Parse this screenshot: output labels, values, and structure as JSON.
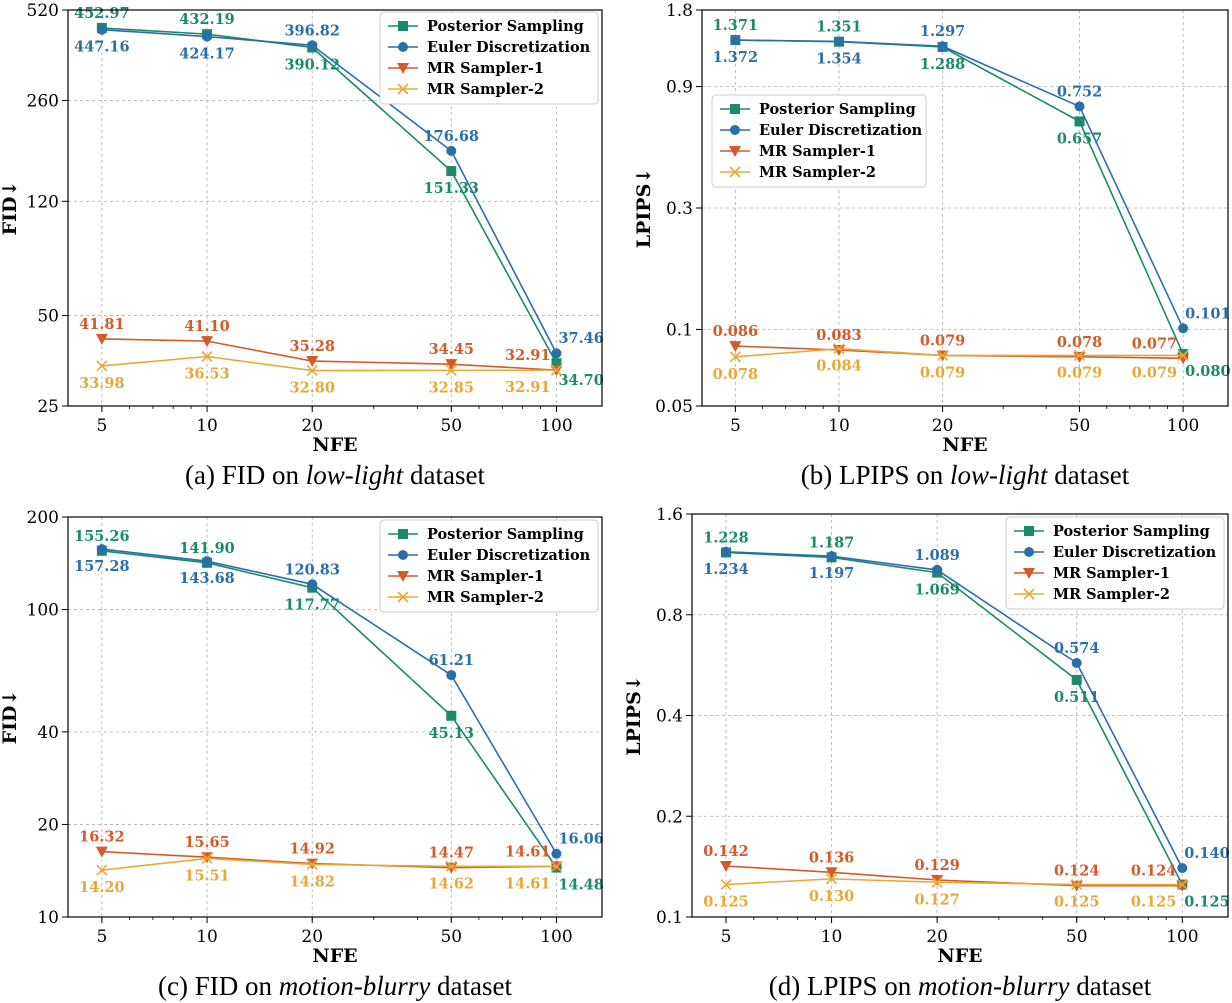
{
  "chart_data": [
    {
      "id": "a",
      "type": "line",
      "caption": {
        "prefix": "(a) FID on ",
        "italic": "low-light",
        "suffix": " dataset"
      },
      "xlabel": "NFE",
      "ylabel": "FID↓",
      "x": [
        5,
        10,
        20,
        50,
        100
      ],
      "x_ticks": [
        "5",
        "10",
        "20",
        "50",
        "100"
      ],
      "xscale": "log",
      "xlim": [
        4,
        135
      ],
      "yscale": "log",
      "ylim": [
        25,
        520
      ],
      "y_ticks": [
        "25",
        "50",
        "120",
        "260",
        "520"
      ],
      "legend": "top-right",
      "series": [
        {
          "name": "Posterior Sampling",
          "color": "#1a8a6a",
          "marker": "square",
          "values": [
            452.97,
            432.19,
            390.12,
            151.33,
            34.7
          ],
          "labels": [
            "452.97",
            "432.19",
            "390.12",
            "151.33",
            "34.70"
          ],
          "label_pos": [
            "above",
            "above",
            "below",
            "below",
            "below-right"
          ]
        },
        {
          "name": "Euler Discretization",
          "color": "#2a6fa8",
          "marker": "circle",
          "values": [
            447.16,
            424.17,
            396.82,
            176.68,
            37.46
          ],
          "labels": [
            "447.16",
            "424.17",
            "396.82",
            "176.68",
            "37.46"
          ],
          "label_pos": [
            "below",
            "below",
            "above",
            "above",
            "above-right"
          ]
        },
        {
          "name": "MR Sampler-1",
          "color": "#d45a2a",
          "marker": "tri_down",
          "values": [
            41.81,
            41.1,
            35.28,
            34.45,
            32.91
          ],
          "labels": [
            "41.81",
            "41.10",
            "35.28",
            "34.45",
            "32.91"
          ],
          "label_pos": [
            "above",
            "above",
            "above",
            "above",
            "above-left"
          ]
        },
        {
          "name": "MR Sampler-2",
          "color": "#e8a838",
          "marker": "x",
          "values": [
            33.98,
            36.53,
            32.8,
            32.85,
            32.91
          ],
          "labels": [
            "33.98",
            "36.53",
            "32.80",
            "32.85",
            "32.91"
          ],
          "label_pos": [
            "below",
            "below",
            "below",
            "below",
            "below-left"
          ]
        }
      ]
    },
    {
      "id": "b",
      "type": "line",
      "caption": {
        "prefix": "(b) LPIPS on ",
        "italic": "low-light",
        "suffix": " dataset"
      },
      "xlabel": "NFE",
      "ylabel": "LPIPS↓",
      "x": [
        5,
        10,
        20,
        50,
        100
      ],
      "x_ticks": [
        "5",
        "10",
        "20",
        "50",
        "100"
      ],
      "xscale": "log",
      "xlim": [
        4,
        135
      ],
      "yscale": "log",
      "ylim": [
        0.05,
        1.8
      ],
      "y_ticks": [
        "0.05",
        "0.1",
        "0.3",
        "0.9",
        "1.8"
      ],
      "legend": "upper-left",
      "series": [
        {
          "name": "Posterior Sampling",
          "color": "#1a8a6a",
          "marker": "square",
          "values": [
            1.371,
            1.351,
            1.288,
            0.657,
            0.08
          ],
          "labels": [
            "1.371",
            "1.351",
            "1.288",
            "0.657",
            "0.080"
          ],
          "label_pos": [
            "above",
            "above",
            "below",
            "below",
            "below-right"
          ]
        },
        {
          "name": "Euler Discretization",
          "color": "#2a6fa8",
          "marker": "circle",
          "values": [
            1.372,
            1.354,
            1.297,
            0.752,
            0.101
          ],
          "labels": [
            "1.372",
            "1.354",
            "1.297",
            "0.752",
            "0.101"
          ],
          "label_pos": [
            "below",
            "below",
            "above",
            "above",
            "above-right"
          ]
        },
        {
          "name": "MR Sampler-1",
          "color": "#d45a2a",
          "marker": "tri_down",
          "values": [
            0.086,
            0.083,
            0.079,
            0.078,
            0.077
          ],
          "labels": [
            "0.086",
            "0.083",
            "0.079",
            "0.078",
            "0.077"
          ],
          "label_pos": [
            "above",
            "above",
            "above",
            "above",
            "above-left"
          ]
        },
        {
          "name": "MR Sampler-2",
          "color": "#e8a838",
          "marker": "x",
          "values": [
            0.078,
            0.084,
            0.079,
            0.079,
            0.079
          ],
          "labels": [
            "0.078",
            "0.084",
            "0.079",
            "0.079",
            "0.079"
          ],
          "label_pos": [
            "below",
            "below",
            "below",
            "below",
            "below-left"
          ]
        }
      ]
    },
    {
      "id": "c",
      "type": "line",
      "caption": {
        "prefix": "(c) FID on ",
        "italic": "motion-blurry",
        "suffix": " dataset"
      },
      "xlabel": "NFE",
      "ylabel": "FID↓",
      "x": [
        5,
        10,
        20,
        50,
        100
      ],
      "x_ticks": [
        "5",
        "10",
        "20",
        "50",
        "100"
      ],
      "xscale": "log",
      "xlim": [
        4,
        135
      ],
      "yscale": "log",
      "ylim": [
        10,
        200
      ],
      "y_ticks": [
        "10",
        "20",
        "40",
        "100",
        "200"
      ],
      "legend": "top-right",
      "series": [
        {
          "name": "Posterior Sampling",
          "color": "#1a8a6a",
          "marker": "square",
          "values": [
            155.26,
            141.9,
            117.77,
            45.13,
            14.48
          ],
          "labels": [
            "155.26",
            "141.90",
            "117.77",
            "45.13",
            "14.48"
          ],
          "label_pos": [
            "above",
            "above",
            "below",
            "below",
            "below-right"
          ]
        },
        {
          "name": "Euler Discretization",
          "color": "#2a6fa8",
          "marker": "circle",
          "values": [
            157.28,
            143.68,
            120.83,
            61.21,
            16.06
          ],
          "labels": [
            "157.28",
            "143.68",
            "120.83",
            "61.21",
            "16.06"
          ],
          "label_pos": [
            "below",
            "below",
            "above",
            "above",
            "above-right"
          ]
        },
        {
          "name": "MR Sampler-1",
          "color": "#d45a2a",
          "marker": "tri_down",
          "values": [
            16.32,
            15.65,
            14.92,
            14.47,
            14.61
          ],
          "labels": [
            "16.32",
            "15.65",
            "14.92",
            "14.47",
            "14.61"
          ],
          "label_pos": [
            "above",
            "above",
            "above",
            "above",
            "above-left"
          ]
        },
        {
          "name": "MR Sampler-2",
          "color": "#e8a838",
          "marker": "x",
          "values": [
            14.2,
            15.51,
            14.82,
            14.62,
            14.61
          ],
          "labels": [
            "14.20",
            "15.51",
            "14.82",
            "14.62",
            "14.61"
          ],
          "label_pos": [
            "below",
            "below",
            "below",
            "below",
            "below-left"
          ]
        }
      ]
    },
    {
      "id": "d",
      "type": "line",
      "caption": {
        "prefix": "(d) LPIPS on ",
        "italic": "motion-blurry",
        "suffix": " dataset"
      },
      "xlabel": "NFE",
      "ylabel": "LPIPS↓",
      "x": [
        5,
        10,
        20,
        50,
        100
      ],
      "x_ticks": [
        "5",
        "10",
        "20",
        "50",
        "100"
      ],
      "xscale": "log",
      "xlim": [
        4,
        135
      ],
      "yscale": "log",
      "ylim": [
        0.1,
        1.6
      ],
      "y_ticks": [
        "0.1",
        "0.2",
        "0.4",
        "0.8",
        "1.6"
      ],
      "legend": "top-right",
      "series": [
        {
          "name": "Posterior Sampling",
          "color": "#1a8a6a",
          "marker": "square",
          "values": [
            1.228,
            1.187,
            1.069,
            0.511,
            0.125
          ],
          "labels": [
            "1.228",
            "1.187",
            "1.069",
            "0.511",
            "0.125"
          ],
          "label_pos": [
            "above",
            "above",
            "below",
            "below",
            "below-right"
          ]
        },
        {
          "name": "Euler Discretization",
          "color": "#2a6fa8",
          "marker": "circle",
          "values": [
            1.234,
            1.197,
            1.089,
            0.574,
            0.14
          ],
          "labels": [
            "1.234",
            "1.197",
            "1.089",
            "0.574",
            "0.140"
          ],
          "label_pos": [
            "below",
            "below",
            "above",
            "above",
            "above-right"
          ]
        },
        {
          "name": "MR Sampler-1",
          "color": "#d45a2a",
          "marker": "tri_down",
          "values": [
            0.142,
            0.136,
            0.129,
            0.124,
            0.124
          ],
          "labels": [
            "0.142",
            "0.136",
            "0.129",
            "0.124",
            "0.124"
          ],
          "label_pos": [
            "above",
            "above",
            "above",
            "above",
            "above-left"
          ]
        },
        {
          "name": "MR Sampler-2",
          "color": "#e8a838",
          "marker": "x",
          "values": [
            0.125,
            0.13,
            0.127,
            0.125,
            0.125
          ],
          "labels": [
            "0.125",
            "0.130",
            "0.127",
            "0.125",
            "0.125"
          ],
          "label_pos": [
            "below",
            "below",
            "below",
            "below",
            "below-left"
          ]
        }
      ]
    }
  ]
}
